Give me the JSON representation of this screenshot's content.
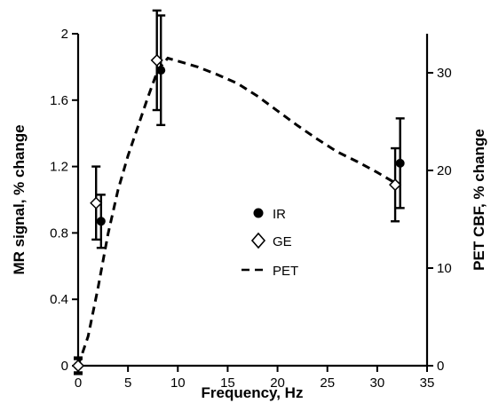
{
  "chart_data": {
    "type": "scatter",
    "xlabel": "Frequency, Hz",
    "ylabel": "MR signal, % change",
    "y2label": "PET CBF, % change",
    "xlim": [
      0,
      35
    ],
    "ylim": [
      0,
      2.0
    ],
    "y2lim": [
      0,
      34
    ],
    "xticks": [
      0,
      5,
      10,
      15,
      20,
      25,
      30,
      35
    ],
    "yticks": [
      0,
      0.4,
      0.8,
      1.2,
      1.6,
      2.0
    ],
    "ytick_labels": [
      "0",
      "0.4",
      "0.8",
      "1.2",
      "1.6",
      "2"
    ],
    "y2ticks": [
      0,
      10,
      20,
      30
    ],
    "grid": false,
    "legend_position": "center",
    "series": [
      {
        "name": "IR",
        "marker": "filled-circle",
        "axis": "left",
        "points": [
          {
            "x": 0,
            "y": 0.0,
            "err": 0.05
          },
          {
            "x": 2.3,
            "y": 0.87,
            "err": 0.16
          },
          {
            "x": 8.3,
            "y": 1.78,
            "err": 0.33
          },
          {
            "x": 32.3,
            "y": 1.22,
            "err": 0.27
          }
        ]
      },
      {
        "name": "GE",
        "marker": "open-diamond",
        "axis": "left",
        "points": [
          {
            "x": 0,
            "y": 0.0,
            "err": 0.04
          },
          {
            "x": 1.8,
            "y": 0.98,
            "err": 0.22
          },
          {
            "x": 7.9,
            "y": 1.84,
            "err": 0.3
          },
          {
            "x": 31.8,
            "y": 1.09,
            "err": 0.22
          }
        ]
      },
      {
        "name": "PET",
        "style": "dashed",
        "axis": "right",
        "x": [
          0,
          1,
          2,
          3,
          4,
          5,
          6,
          7,
          8,
          9,
          10,
          12,
          14,
          16,
          18,
          20,
          22,
          24,
          26,
          28,
          30,
          32
        ],
        "y": [
          0,
          3,
          8,
          13.5,
          18,
          21.5,
          24.5,
          27.5,
          30.3,
          31.5,
          31.2,
          30.6,
          29.8,
          28.9,
          27.6,
          26.1,
          24.6,
          23.2,
          21.9,
          20.9,
          19.8,
          18.6
        ]
      }
    ]
  }
}
